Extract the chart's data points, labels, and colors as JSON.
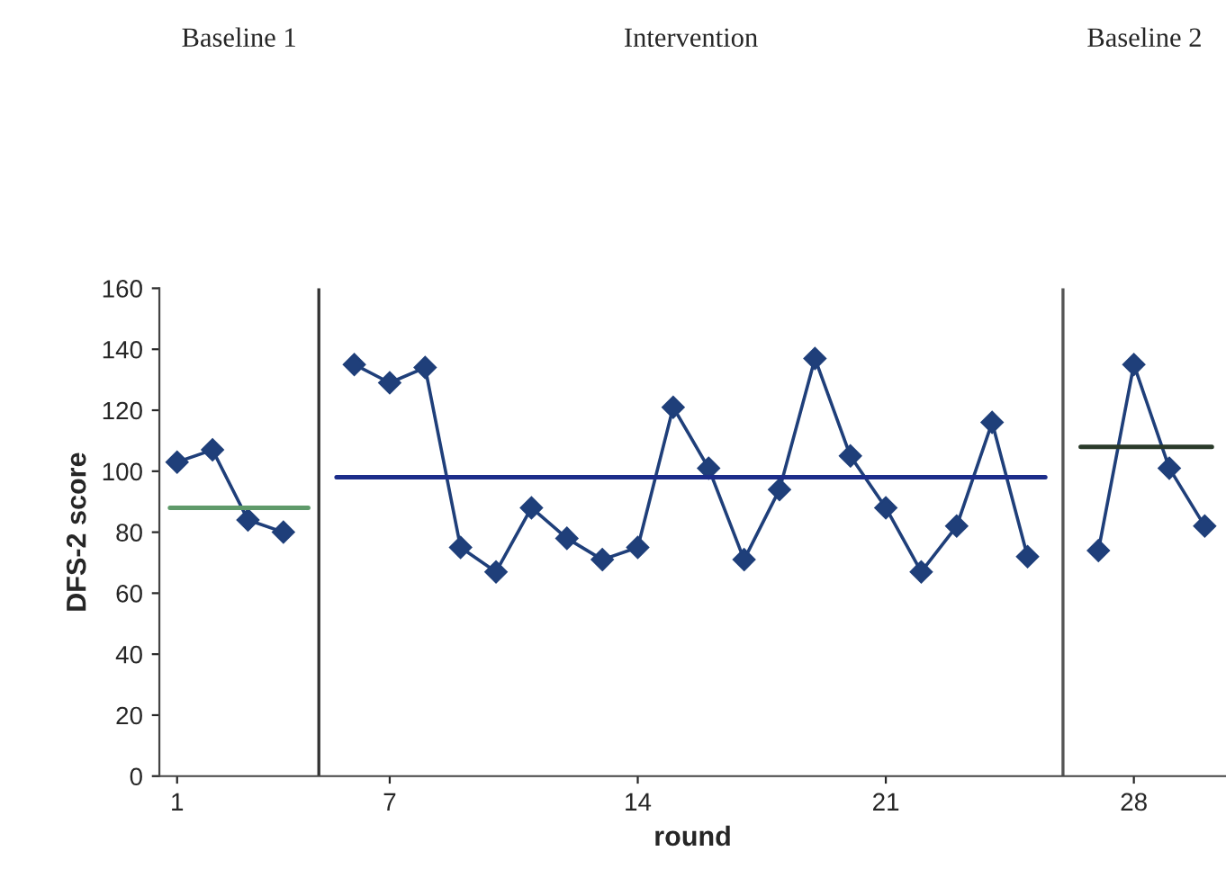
{
  "chart_data": {
    "type": "line",
    "xlabel": "round",
    "ylabel": "DFS-2 score",
    "annotations": [
      "Baseline 1",
      "Intervention",
      "Baseline 2"
    ],
    "series": [
      {
        "color": "#1f3f7a",
        "x": [
          1,
          2,
          3,
          4
        ],
        "values": [
          103,
          107,
          84,
          80
        ]
      },
      {
        "color": "#1f3f7a",
        "x": [
          6,
          7,
          8,
          9,
          10,
          11,
          12,
          13,
          14,
          15,
          16,
          17,
          18,
          19,
          20,
          21,
          22,
          23,
          24,
          25
        ],
        "values": [
          135,
          129,
          134,
          75,
          67,
          88,
          78,
          71,
          75,
          121,
          101,
          71,
          94,
          137,
          105,
          88,
          67,
          82,
          116,
          72
        ]
      },
      {
        "color": "#1f3f7a",
        "x": [
          27,
          28,
          29,
          30
        ],
        "values": [
          74,
          135,
          101,
          82
        ]
      },
      {
        "color": "#5f9a6a",
        "marker": "none",
        "x": [
          0.8,
          4.7
        ],
        "values": [
          88,
          88
        ]
      },
      {
        "color": "#1c2d8a",
        "marker": "none",
        "x": [
          5.5,
          25.5
        ],
        "values": [
          98,
          98
        ]
      },
      {
        "color": "#2a3a2a",
        "marker": "none",
        "x": [
          26.5,
          30.2
        ],
        "values": [
          108,
          108
        ]
      }
    ],
    "ref_lines": [
      {
        "axis": "x",
        "value": 5,
        "color": "#333333"
      },
      {
        "axis": "x",
        "value": 26,
        "color": "#555555"
      }
    ],
    "xlim": [
      0.5,
      30.6
    ],
    "xticks": [
      1,
      7,
      14,
      21,
      28
    ],
    "ylim": [
      0,
      160
    ],
    "yticks": [
      0,
      20,
      40,
      60,
      80,
      100,
      120,
      140,
      160
    ],
    "marker": "diamond",
    "grid": false,
    "legend": false
  }
}
